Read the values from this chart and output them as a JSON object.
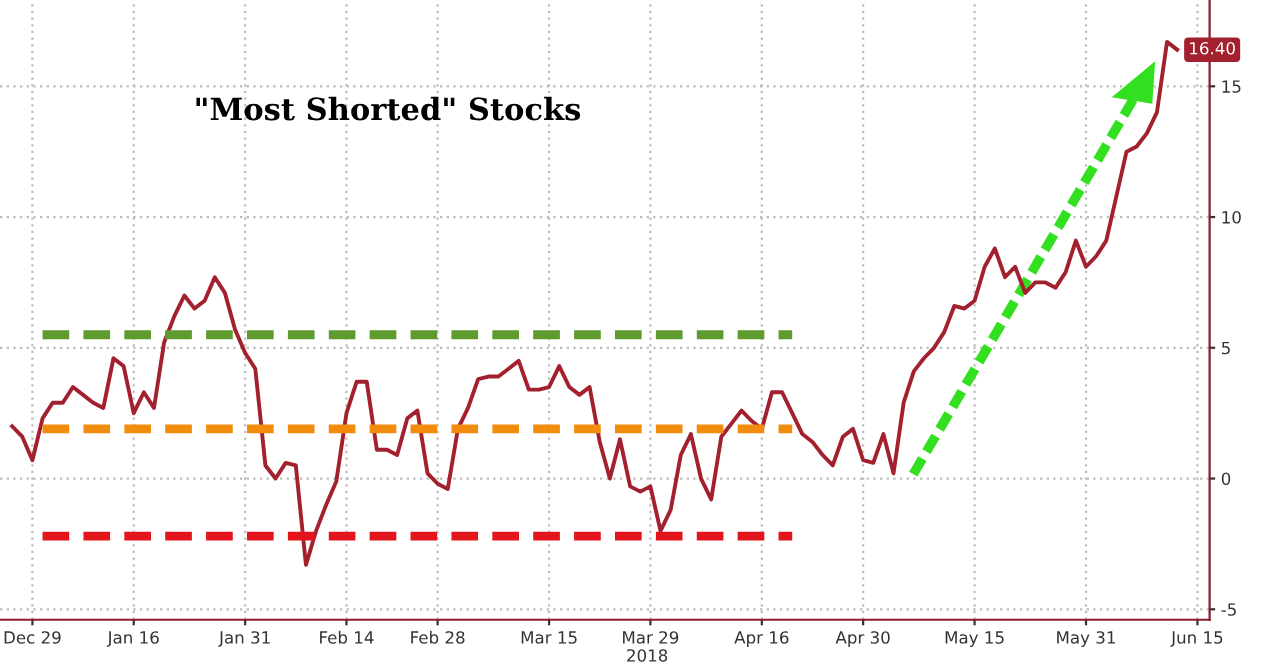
{
  "chart_data": {
    "type": "line",
    "title": "\"Most Shorted\" Stocks",
    "categories": [
      null,
      null,
      "Dec 29",
      null,
      null,
      null,
      null,
      null,
      null,
      null,
      null,
      null,
      "Jan 16",
      null,
      null,
      null,
      null,
      null,
      null,
      null,
      null,
      null,
      null,
      "Jan 31",
      null,
      null,
      null,
      null,
      null,
      null,
      null,
      null,
      null,
      "Feb 14",
      null,
      null,
      null,
      null,
      null,
      null,
      null,
      null,
      "Feb 28",
      null,
      null,
      null,
      null,
      null,
      null,
      null,
      null,
      null,
      null,
      "Mar 15",
      null,
      null,
      null,
      null,
      null,
      null,
      null,
      null,
      null,
      "Mar 29",
      null,
      null,
      null,
      null,
      null,
      null,
      null,
      null,
      null,
      null,
      "Apr 16",
      null,
      null,
      null,
      null,
      null,
      null,
      null,
      null,
      null,
      "Apr 30",
      null,
      null,
      null,
      null,
      null,
      null,
      null,
      null,
      null,
      null,
      "May 15",
      null,
      null,
      null,
      null,
      null,
      null,
      null,
      null,
      null,
      null,
      "May 31",
      null,
      null,
      null,
      null,
      null,
      null,
      null,
      null,
      null,
      null,
      "Jun 15"
    ],
    "series": [
      {
        "color": "#a3202f",
        "line_style": "solid",
        "values": [
          2.0,
          1.6,
          0.7,
          2.3,
          2.9,
          2.9,
          3.5,
          3.2,
          2.9,
          2.7,
          4.6,
          4.3,
          2.5,
          3.3,
          2.7,
          5.2,
          6.2,
          7.0,
          6.5,
          6.8,
          7.7,
          7.1,
          5.7,
          4.8,
          4.2,
          0.5,
          0.0,
          0.6,
          0.5,
          -3.3,
          -2.0,
          -1.0,
          -0.1,
          2.5,
          3.7,
          3.7,
          1.1,
          1.1,
          0.9,
          2.3,
          2.6,
          0.2,
          -0.2,
          -0.4,
          1.9,
          2.7,
          3.8,
          3.9,
          3.9,
          4.2,
          4.5,
          3.4,
          3.4,
          3.5,
          4.3,
          3.5,
          3.2,
          3.5,
          1.4,
          0.0,
          1.5,
          -0.3,
          -0.5,
          -0.3,
          -2.0,
          -1.2,
          0.9,
          1.7,
          0.0,
          -0.8,
          1.6,
          2.1,
          2.6,
          2.2,
          1.9,
          3.3,
          3.3,
          2.5,
          1.7,
          1.4,
          0.9,
          0.5,
          1.6,
          1.9,
          0.7,
          0.6,
          1.7,
          0.2,
          2.9,
          4.1,
          4.6,
          5.0,
          5.6,
          6.6,
          6.5,
          6.8,
          8.1,
          8.8,
          7.7,
          8.1,
          7.1,
          7.5,
          7.5,
          7.3,
          7.9,
          9.1,
          8.1,
          8.5,
          9.1,
          10.8,
          12.5,
          12.7,
          13.2,
          14.0,
          16.7,
          16.4,
          null,
          null
        ],
        "value_labels": [
          null,
          null,
          null,
          null,
          null,
          null,
          null,
          null,
          null,
          null,
          null,
          null,
          null,
          null,
          null,
          null,
          null,
          null,
          null,
          null,
          null,
          null,
          null,
          null,
          null,
          null,
          null,
          null,
          null,
          null,
          null,
          null,
          null,
          null,
          null,
          null,
          null,
          null,
          null,
          null,
          null,
          null,
          null,
          null,
          null,
          null,
          null,
          null,
          null,
          null,
          null,
          null,
          null,
          null,
          null,
          null,
          null,
          null,
          null,
          null,
          null,
          null,
          null,
          null,
          null,
          null,
          null,
          null,
          null,
          null,
          null,
          null,
          null,
          null,
          null,
          null,
          null,
          null,
          null,
          null,
          null,
          null,
          null,
          null,
          null,
          null,
          null,
          null,
          null,
          null,
          null,
          null,
          null,
          null,
          null,
          null,
          null,
          null,
          null,
          null,
          null,
          null,
          null,
          null,
          null,
          null,
          null,
          null,
          null,
          null,
          null,
          null,
          null,
          null,
          null,
          "16.40",
          null,
          null
        ]
      },
      {
        "color": "#5e9a2e",
        "line_style": "dashed",
        "values": [
          null,
          null,
          null,
          5.5,
          5.5,
          5.5,
          5.5,
          5.5,
          5.5,
          5.5,
          5.5,
          5.5,
          5.5,
          5.5,
          5.5,
          5.5,
          5.5,
          5.5,
          5.5,
          5.5,
          5.5,
          5.5,
          5.5,
          5.5,
          5.5,
          5.5,
          5.5,
          5.5,
          5.5,
          5.5,
          5.5,
          5.5,
          5.5,
          5.5,
          5.5,
          5.5,
          5.5,
          5.5,
          5.5,
          5.5,
          5.5,
          5.5,
          5.5,
          5.5,
          5.5,
          5.5,
          5.5,
          5.5,
          5.5,
          5.5,
          5.5,
          5.5,
          5.5,
          5.5,
          5.5,
          5.5,
          5.5,
          5.5,
          5.5,
          5.5,
          5.5,
          5.5,
          5.5,
          5.5,
          5.5,
          5.5,
          5.5,
          5.5,
          5.5,
          5.5,
          5.5,
          5.5,
          5.5,
          5.5,
          5.5,
          5.5,
          5.5,
          5.5,
          null,
          null,
          null,
          null,
          null,
          null,
          null,
          null,
          null,
          null,
          null,
          null,
          null,
          null,
          null,
          null,
          null,
          null,
          null,
          null,
          null,
          null,
          null,
          null,
          null,
          null,
          null,
          null,
          null,
          null,
          null,
          null,
          null,
          null,
          null,
          null,
          null,
          null,
          null,
          null
        ]
      },
      {
        "color": "#f28c0f",
        "line_style": "dashed",
        "values": [
          null,
          null,
          null,
          1.9,
          1.9,
          1.9,
          1.9,
          1.9,
          1.9,
          1.9,
          1.9,
          1.9,
          1.9,
          1.9,
          1.9,
          1.9,
          1.9,
          1.9,
          1.9,
          1.9,
          1.9,
          1.9,
          1.9,
          1.9,
          1.9,
          1.9,
          1.9,
          1.9,
          1.9,
          1.9,
          1.9,
          1.9,
          1.9,
          1.9,
          1.9,
          1.9,
          1.9,
          1.9,
          1.9,
          1.9,
          1.9,
          1.9,
          1.9,
          1.9,
          1.9,
          1.9,
          1.9,
          1.9,
          1.9,
          1.9,
          1.9,
          1.9,
          1.9,
          1.9,
          1.9,
          1.9,
          1.9,
          1.9,
          1.9,
          1.9,
          1.9,
          1.9,
          1.9,
          1.9,
          1.9,
          1.9,
          1.9,
          1.9,
          1.9,
          1.9,
          1.9,
          1.9,
          1.9,
          1.9,
          1.9,
          1.9,
          1.9,
          1.9,
          null,
          null,
          null,
          null,
          null,
          null,
          null,
          null,
          null,
          null,
          null,
          null,
          null,
          null,
          null,
          null,
          null,
          null,
          null,
          null,
          null,
          null,
          null,
          null,
          null,
          null,
          null,
          null,
          null,
          null,
          null,
          null,
          null,
          null,
          null,
          null,
          null,
          null,
          null,
          null
        ]
      },
      {
        "color": "#e3141c",
        "line_style": "dashed",
        "values": [
          null,
          null,
          null,
          -2.2,
          -2.2,
          -2.2,
          -2.2,
          -2.2,
          -2.2,
          -2.2,
          -2.2,
          -2.2,
          -2.2,
          -2.2,
          -2.2,
          -2.2,
          -2.2,
          -2.2,
          -2.2,
          -2.2,
          -2.2,
          -2.2,
          -2.2,
          -2.2,
          -2.2,
          -2.2,
          -2.2,
          -2.2,
          -2.2,
          -2.2,
          -2.2,
          -2.2,
          -2.2,
          -2.2,
          -2.2,
          -2.2,
          -2.2,
          -2.2,
          -2.2,
          -2.2,
          -2.2,
          -2.2,
          -2.2,
          -2.2,
          -2.2,
          -2.2,
          -2.2,
          -2.2,
          -2.2,
          -2.2,
          -2.2,
          -2.2,
          -2.2,
          -2.2,
          -2.2,
          -2.2,
          -2.2,
          -2.2,
          -2.2,
          -2.2,
          -2.2,
          -2.2,
          -2.2,
          -2.2,
          -2.2,
          -2.2,
          -2.2,
          -2.2,
          -2.2,
          -2.2,
          -2.2,
          -2.2,
          -2.2,
          -2.2,
          -2.2,
          -2.2,
          -2.2,
          -2.2,
          null,
          null,
          null,
          null,
          null,
          null,
          null,
          null,
          null,
          null,
          null,
          null,
          null,
          null,
          null,
          null,
          null,
          null,
          null,
          null,
          null,
          null,
          null,
          null,
          null,
          null,
          null,
          null,
          null,
          null,
          null,
          null,
          null,
          null,
          null,
          null,
          null,
          null,
          null,
          null
        ]
      }
    ],
    "ylim": [
      -5.4,
      18.3
    ],
    "yticks": [
      -5,
      0,
      5,
      10,
      15
    ],
    "grid": true,
    "legend": false,
    "annotations": [
      "2018"
    ]
  }
}
